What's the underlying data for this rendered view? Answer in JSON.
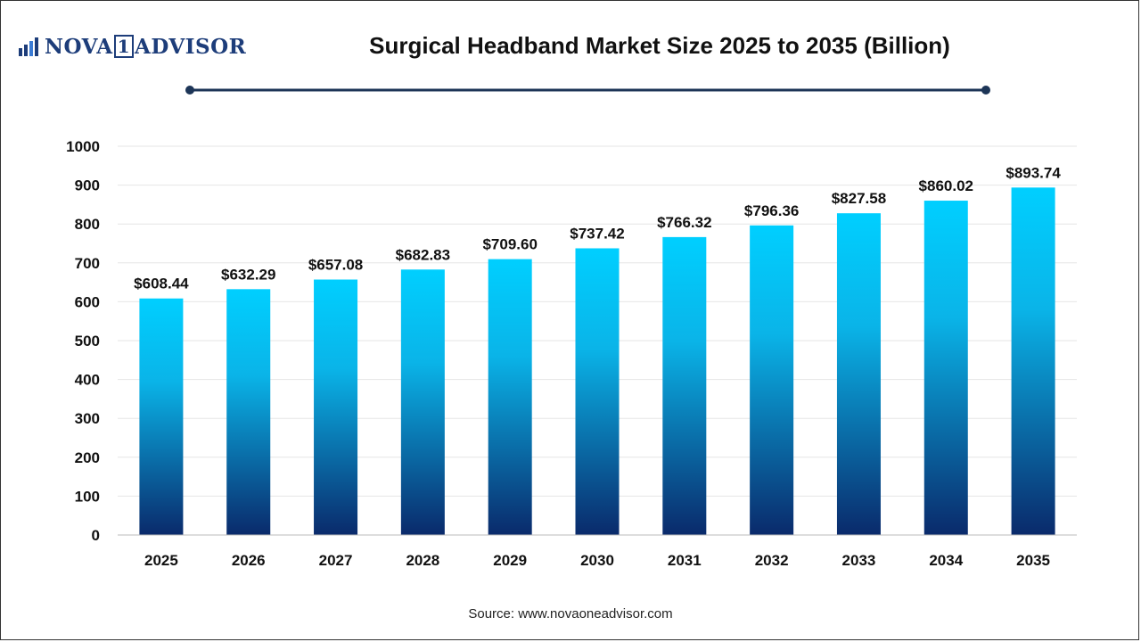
{
  "logo": {
    "brand_left": "NOVA",
    "brand_one": "1",
    "brand_right": "ADVISOR"
  },
  "colors": {
    "bar_top": "#00cfff",
    "bar_bottom": "#0a2a6b",
    "title_rule": "#1d3557",
    "grid": "#e6e6e6"
  },
  "source": "Source: www.novaoneadvisor.com",
  "chart_data": {
    "type": "bar",
    "title": "Surgical Headband Market Size 2025 to 2035 (Billion)",
    "xlabel": "",
    "ylabel": "",
    "categories": [
      "2025",
      "2026",
      "2027",
      "2028",
      "2029",
      "2030",
      "2031",
      "2032",
      "2033",
      "2034",
      "2035"
    ],
    "values": [
      608.44,
      632.29,
      657.08,
      682.83,
      709.6,
      737.42,
      766.32,
      796.36,
      827.58,
      860.02,
      893.74
    ],
    "data_labels": [
      "$608.44",
      "$632.29",
      "$657.08",
      "$682.83",
      "$709.60",
      "$737.42",
      "$766.32",
      "$796.36",
      "$827.58",
      "$860.02",
      "$893.74"
    ],
    "ylim": [
      0,
      1000
    ],
    "yticks": [
      "0",
      "100",
      "200",
      "300",
      "400",
      "500",
      "600",
      "700",
      "800",
      "900",
      "1000"
    ],
    "grid": true,
    "legend": "none"
  }
}
